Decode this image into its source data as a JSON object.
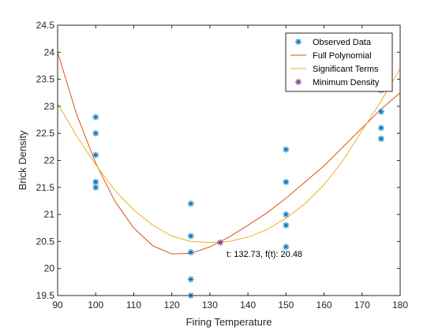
{
  "chart_data": {
    "type": "scatter",
    "title": "",
    "xlabel": "Firing Temperature",
    "ylabel": "Brick Density",
    "xlim": [
      90,
      180
    ],
    "ylim": [
      19.5,
      24.5
    ],
    "xticks": [
      90,
      100,
      110,
      120,
      130,
      140,
      150,
      160,
      170,
      180
    ],
    "yticks": [
      19.5,
      20,
      20.5,
      21,
      21.5,
      22,
      22.5,
      23,
      23.5,
      24,
      24.5
    ],
    "xtick_labels": [
      "90",
      "100",
      "110",
      "120",
      "130",
      "140",
      "150",
      "160",
      "170",
      "180"
    ],
    "ytick_labels": [
      "19.5",
      "20",
      "20.5",
      "21",
      "21.5",
      "22",
      "22.5",
      "23",
      "23.5",
      "24",
      "24.5"
    ],
    "grid": false,
    "legend_position": "top-right",
    "series": [
      {
        "name": "Observed Data",
        "kind": "scatter",
        "marker": "asterisk",
        "color": "#0072BD",
        "points": [
          [
            100,
            22.8
          ],
          [
            100,
            22.5
          ],
          [
            100,
            22.1
          ],
          [
            100,
            21.6
          ],
          [
            100,
            21.5
          ],
          [
            125,
            21.2
          ],
          [
            125,
            20.6
          ],
          [
            125,
            20.3
          ],
          [
            125,
            19.8
          ],
          [
            125,
            19.5
          ],
          [
            150,
            22.2
          ],
          [
            150,
            21.6
          ],
          [
            150,
            21.0
          ],
          [
            150,
            20.8
          ],
          [
            150,
            20.4
          ],
          [
            175,
            23.3
          ],
          [
            175,
            22.9
          ],
          [
            175,
            22.6
          ],
          [
            175,
            22.4
          ]
        ]
      },
      {
        "name": "Full Polynomial",
        "kind": "line",
        "color": "#D95319",
        "x": [
          90,
          95,
          100,
          105,
          110,
          115,
          120,
          125,
          130,
          135,
          140,
          145,
          150,
          155,
          160,
          165,
          170,
          175,
          180
        ],
        "y": [
          24.0,
          22.85,
          21.95,
          21.25,
          20.75,
          20.42,
          20.27,
          20.28,
          20.4,
          20.58,
          20.8,
          21.03,
          21.3,
          21.6,
          21.9,
          22.25,
          22.6,
          22.95,
          23.25
        ]
      },
      {
        "name": "Significant Terms",
        "kind": "line",
        "color": "#EDB120",
        "x": [
          90,
          95,
          100,
          105,
          110,
          115,
          120,
          125,
          130,
          135,
          140,
          145,
          150,
          155,
          160,
          165,
          170,
          175,
          180
        ],
        "y": [
          23.05,
          22.45,
          21.92,
          21.45,
          21.08,
          20.8,
          20.6,
          20.5,
          20.48,
          20.5,
          20.58,
          20.72,
          20.93,
          21.2,
          21.55,
          22.0,
          22.55,
          23.1,
          23.7
        ]
      },
      {
        "name": "Minimum Density",
        "kind": "scatter",
        "marker": "asterisk",
        "color": "#7E2F8E",
        "points": [
          [
            132.73,
            20.48
          ]
        ]
      }
    ],
    "annotations": [
      {
        "text": "t: 132.73, f(t): 20.48",
        "x": 132.73,
        "y": 20.48
      }
    ]
  }
}
